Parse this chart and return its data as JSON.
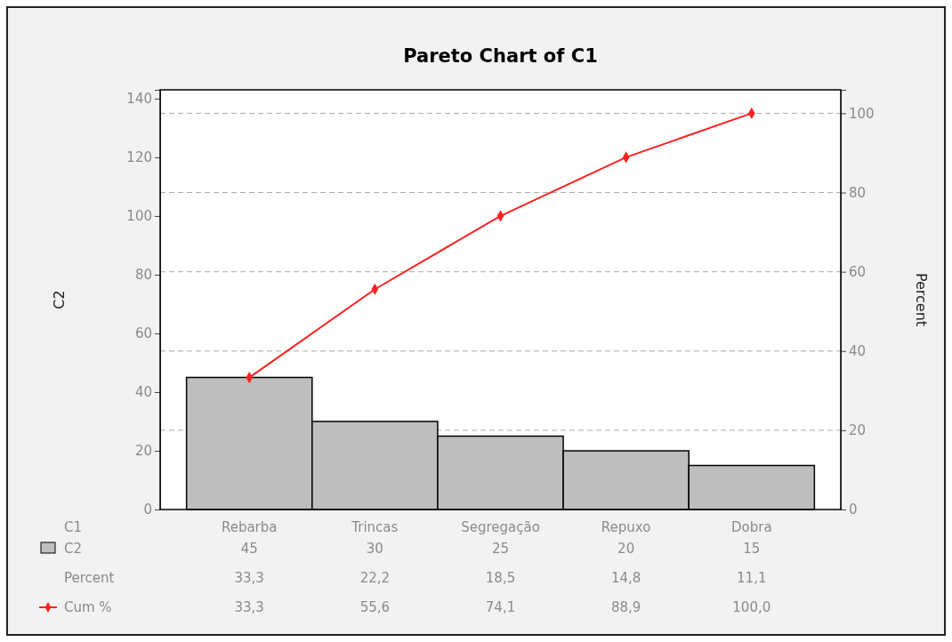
{
  "chart_data": {
    "type": "bar",
    "title": "Pareto Chart of C1",
    "xlabel": "C1",
    "ylabel": "C2",
    "y2label": "Percent",
    "categories": [
      "Rebarba",
      "Trincas",
      "Segregação",
      "Repuxo",
      "Dobra"
    ],
    "series": [
      {
        "name": "C2",
        "color": "#bebebe",
        "values": [
          45,
          30,
          25,
          20,
          15
        ],
        "value_labels": [
          "45",
          "30",
          "25",
          "20",
          "15"
        ]
      },
      {
        "name": "Cum %",
        "type": "line",
        "axis": "y2",
        "color": "#ff2020",
        "marker": "diamond",
        "line_style": "solid",
        "values": [
          33.3,
          55.6,
          74.1,
          88.9,
          100
        ],
        "value_labels": [
          "33,3",
          "55,6",
          "74,1",
          "88,9",
          "100,0"
        ]
      }
    ],
    "annotations": [
      "33,3",
      "22,2",
      "18,5",
      "14,8",
      "11,1"
    ],
    "ylim": [
      0,
      143
    ],
    "yticks": [
      0,
      20,
      40,
      60,
      80,
      100,
      120,
      140
    ],
    "y2lim": [
      0,
      105.93
    ],
    "y2ticks": [
      0,
      20,
      40,
      60,
      80,
      100
    ],
    "grid": "y",
    "legend": "bottom left"
  }
}
